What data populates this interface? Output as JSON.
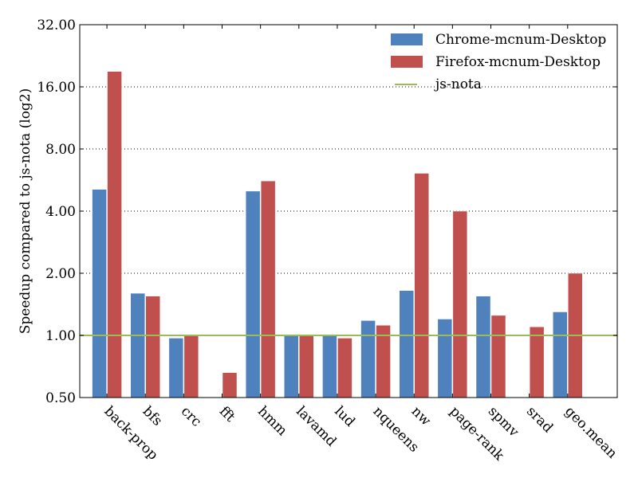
{
  "chart_data": {
    "type": "bar",
    "ylabel": "Speedup compared to js-nota (log2)",
    "yscale": "log2",
    "ylim": [
      0.5,
      32
    ],
    "yticks": [
      "0.50",
      "1.00",
      "2.00",
      "4.00",
      "8.00",
      "16.00",
      "32.00"
    ],
    "yticks_values": [
      0.5,
      1,
      2,
      4,
      8,
      16,
      32
    ],
    "grid": "horizontal dotted",
    "legend_position": "top-right",
    "categories": [
      "back-prop",
      "bfs",
      "crc",
      "fft",
      "hmm",
      "lavamd",
      "lud",
      "nqueens",
      "nw",
      "page-rank",
      "spmv",
      "srad",
      "geo.mean"
    ],
    "series": [
      {
        "name": "Chrome-mcnum-Desktop",
        "color": "#4f81bd",
        "values": [
          5.1,
          1.6,
          0.97,
          null,
          5.0,
          1.0,
          1.0,
          1.18,
          1.65,
          1.2,
          1.55,
          null,
          1.3
        ]
      },
      {
        "name": "Firefox-mcnum-Desktop",
        "color": "#c0504d",
        "values": [
          19.0,
          1.55,
          1.0,
          0.66,
          5.6,
          1.0,
          0.97,
          1.12,
          6.1,
          4.0,
          1.25,
          1.1,
          2.0
        ]
      }
    ],
    "reference_line": {
      "name": "js-nota",
      "value": 1.0,
      "color": "#9bbb59"
    }
  }
}
